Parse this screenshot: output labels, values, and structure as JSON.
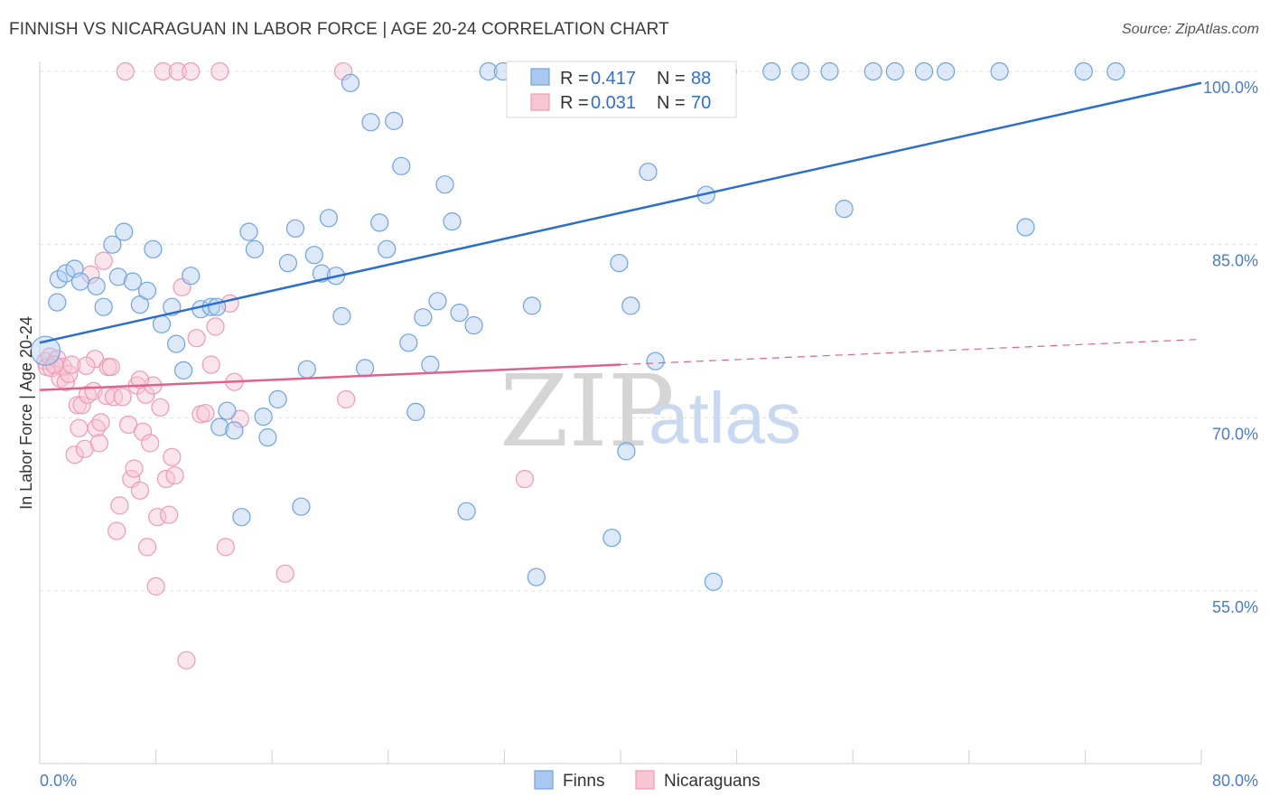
{
  "title": "FINNISH VS NICARAGUAN IN LABOR FORCE | AGE 20-24 CORRELATION CHART",
  "source": "Source: ZipAtlas.com",
  "colors": {
    "finns": "#6fa3e0",
    "finns_line": "#2b6fcb",
    "nicaraguans": "#ef9ab4",
    "nicaraguans_line": "#e0628c",
    "grid": "#e4e4e4",
    "tick": "#4a7cc7"
  },
  "legend": {
    "r_label": "R =",
    "n_label": "N =",
    "finns": {
      "r": "0.417",
      "n": "88"
    },
    "nicaraguans": {
      "r": "0.031",
      "n": "70"
    }
  },
  "watermark": {
    "zip": "ZIP",
    "atlas": "atlas"
  },
  "chart_data": {
    "type": "scatter",
    "title": "FINNISH VS NICARAGUAN IN LABOR FORCE | AGE 20-24 CORRELATION CHART",
    "xlabel": "",
    "ylabel": "In Labor Force | Age 20-24",
    "xlim": [
      0,
      80
    ],
    "ylim": [
      40,
      102
    ],
    "x_tick_labels": [
      "0.0%",
      "80.0%"
    ],
    "y_ticks": [
      55,
      70,
      85,
      100
    ],
    "y_tick_labels": [
      "55.0%",
      "70.0%",
      "85.0%",
      "100.0%"
    ],
    "legend_position": "top-center",
    "series": [
      {
        "name": "Finns",
        "color": "#6fa3e0",
        "trend": {
          "x": [
            0,
            80
          ],
          "y": [
            76.5,
            99.0
          ],
          "dashed_beyond": null
        },
        "points": [
          [
            0.4,
            75.8
          ],
          [
            1.2,
            80.0
          ],
          [
            1.3,
            82.0
          ],
          [
            1.8,
            82.5
          ],
          [
            2.4,
            82.9
          ],
          [
            2.8,
            81.8
          ],
          [
            3.9,
            81.4
          ],
          [
            4.4,
            79.6
          ],
          [
            5.0,
            85.0
          ],
          [
            5.4,
            82.2
          ],
          [
            5.8,
            86.1
          ],
          [
            6.4,
            81.8
          ],
          [
            6.9,
            79.8
          ],
          [
            7.4,
            81.0
          ],
          [
            7.8,
            84.6
          ],
          [
            8.4,
            78.1
          ],
          [
            9.1,
            79.6
          ],
          [
            9.4,
            76.4
          ],
          [
            9.9,
            74.1
          ],
          [
            10.4,
            82.3
          ],
          [
            11.1,
            79.4
          ],
          [
            11.8,
            79.6
          ],
          [
            12.2,
            79.6
          ],
          [
            12.4,
            69.2
          ],
          [
            12.9,
            70.6
          ],
          [
            13.4,
            68.9
          ],
          [
            13.9,
            61.4
          ],
          [
            14.4,
            86.1
          ],
          [
            14.8,
            84.6
          ],
          [
            15.4,
            70.1
          ],
          [
            15.7,
            68.3
          ],
          [
            16.4,
            71.6
          ],
          [
            17.1,
            83.4
          ],
          [
            17.6,
            86.4
          ],
          [
            18.0,
            62.3
          ],
          [
            18.4,
            74.2
          ],
          [
            18.9,
            84.1
          ],
          [
            19.4,
            82.5
          ],
          [
            19.9,
            87.3
          ],
          [
            20.4,
            82.3
          ],
          [
            20.8,
            78.8
          ],
          [
            21.4,
            99.0
          ],
          [
            22.4,
            74.3
          ],
          [
            22.8,
            95.6
          ],
          [
            23.4,
            86.9
          ],
          [
            23.9,
            84.6
          ],
          [
            24.4,
            95.7
          ],
          [
            24.9,
            91.8
          ],
          [
            25.4,
            76.5
          ],
          [
            25.9,
            70.5
          ],
          [
            26.4,
            78.7
          ],
          [
            26.9,
            74.6
          ],
          [
            27.4,
            80.1
          ],
          [
            27.9,
            90.2
          ],
          [
            28.4,
            87.0
          ],
          [
            28.9,
            79.1
          ],
          [
            29.4,
            61.9
          ],
          [
            29.9,
            78.0
          ],
          [
            30.9,
            100.0
          ],
          [
            31.9,
            100.0
          ],
          [
            33.9,
            79.7
          ],
          [
            34.2,
            56.2
          ],
          [
            35.9,
            100.0
          ],
          [
            37.4,
            100.0
          ],
          [
            38.4,
            100.0
          ],
          [
            39.4,
            59.6
          ],
          [
            39.9,
            83.4
          ],
          [
            40.4,
            67.1
          ],
          [
            40.7,
            79.7
          ],
          [
            41.9,
            91.3
          ],
          [
            42.4,
            74.9
          ],
          [
            43.4,
            100.0
          ],
          [
            44.9,
            100.0
          ],
          [
            45.9,
            89.3
          ],
          [
            46.4,
            55.8
          ],
          [
            47.4,
            100.0
          ],
          [
            50.4,
            100.0
          ],
          [
            52.4,
            100.0
          ],
          [
            54.4,
            100.0
          ],
          [
            55.4,
            88.1
          ],
          [
            57.4,
            100.0
          ],
          [
            58.9,
            100.0
          ],
          [
            60.9,
            100.0
          ],
          [
            62.4,
            100.0
          ],
          [
            66.1,
            100.0
          ],
          [
            67.9,
            86.5
          ],
          [
            71.9,
            100.0
          ],
          [
            74.1,
            100.0
          ]
        ]
      },
      {
        "name": "Nicaraguans",
        "color": "#ef9ab4",
        "trend": {
          "x": [
            0,
            40
          ],
          "y": [
            72.4,
            74.6
          ],
          "dashed_to": [
            80,
            76.8
          ]
        },
        "points": [
          [
            0.4,
            74.9
          ],
          [
            0.5,
            74.4
          ],
          [
            0.7,
            75.3
          ],
          [
            0.8,
            74.3
          ],
          [
            1.2,
            75.1
          ],
          [
            1.4,
            73.4
          ],
          [
            1.6,
            74.4
          ],
          [
            1.8,
            73.1
          ],
          [
            2.0,
            73.8
          ],
          [
            2.2,
            74.6
          ],
          [
            2.4,
            66.8
          ],
          [
            2.6,
            71.1
          ],
          [
            2.7,
            69.1
          ],
          [
            2.9,
            71.1
          ],
          [
            3.1,
            67.3
          ],
          [
            3.3,
            72.0
          ],
          [
            3.5,
            82.4
          ],
          [
            3.7,
            72.3
          ],
          [
            3.8,
            75.1
          ],
          [
            3.9,
            69.1
          ],
          [
            4.1,
            67.8
          ],
          [
            4.2,
            69.6
          ],
          [
            4.4,
            83.6
          ],
          [
            4.6,
            71.9
          ],
          [
            4.7,
            74.4
          ],
          [
            4.9,
            74.4
          ],
          [
            5.1,
            71.8
          ],
          [
            5.3,
            60.2
          ],
          [
            5.5,
            62.4
          ],
          [
            5.7,
            71.8
          ],
          [
            5.9,
            100.0
          ],
          [
            6.1,
            69.4
          ],
          [
            6.3,
            64.7
          ],
          [
            6.5,
            65.6
          ],
          [
            6.7,
            72.8
          ],
          [
            6.9,
            63.7
          ],
          [
            7.1,
            68.8
          ],
          [
            7.3,
            72.0
          ],
          [
            7.4,
            58.8
          ],
          [
            7.6,
            67.8
          ],
          [
            7.8,
            72.8
          ],
          [
            8.0,
            55.4
          ],
          [
            8.1,
            61.4
          ],
          [
            8.3,
            70.9
          ],
          [
            8.5,
            100.0
          ],
          [
            8.7,
            64.7
          ],
          [
            8.9,
            61.6
          ],
          [
            9.1,
            66.6
          ],
          [
            9.3,
            65.0
          ],
          [
            9.5,
            100.0
          ],
          [
            9.8,
            81.3
          ],
          [
            10.1,
            49.0
          ],
          [
            10.4,
            100.0
          ],
          [
            10.8,
            76.9
          ],
          [
            11.1,
            70.3
          ],
          [
            11.4,
            70.4
          ],
          [
            11.8,
            74.6
          ],
          [
            12.1,
            77.9
          ],
          [
            12.4,
            100.0
          ],
          [
            12.8,
            58.8
          ],
          [
            13.1,
            79.9
          ],
          [
            13.4,
            73.1
          ],
          [
            13.8,
            69.9
          ],
          [
            16.9,
            56.5
          ],
          [
            20.9,
            100.0
          ],
          [
            21.1,
            71.6
          ],
          [
            33.4,
            64.7
          ],
          [
            1.0,
            74.6
          ],
          [
            3.2,
            74.5
          ],
          [
            6.9,
            73.3
          ]
        ]
      }
    ]
  }
}
